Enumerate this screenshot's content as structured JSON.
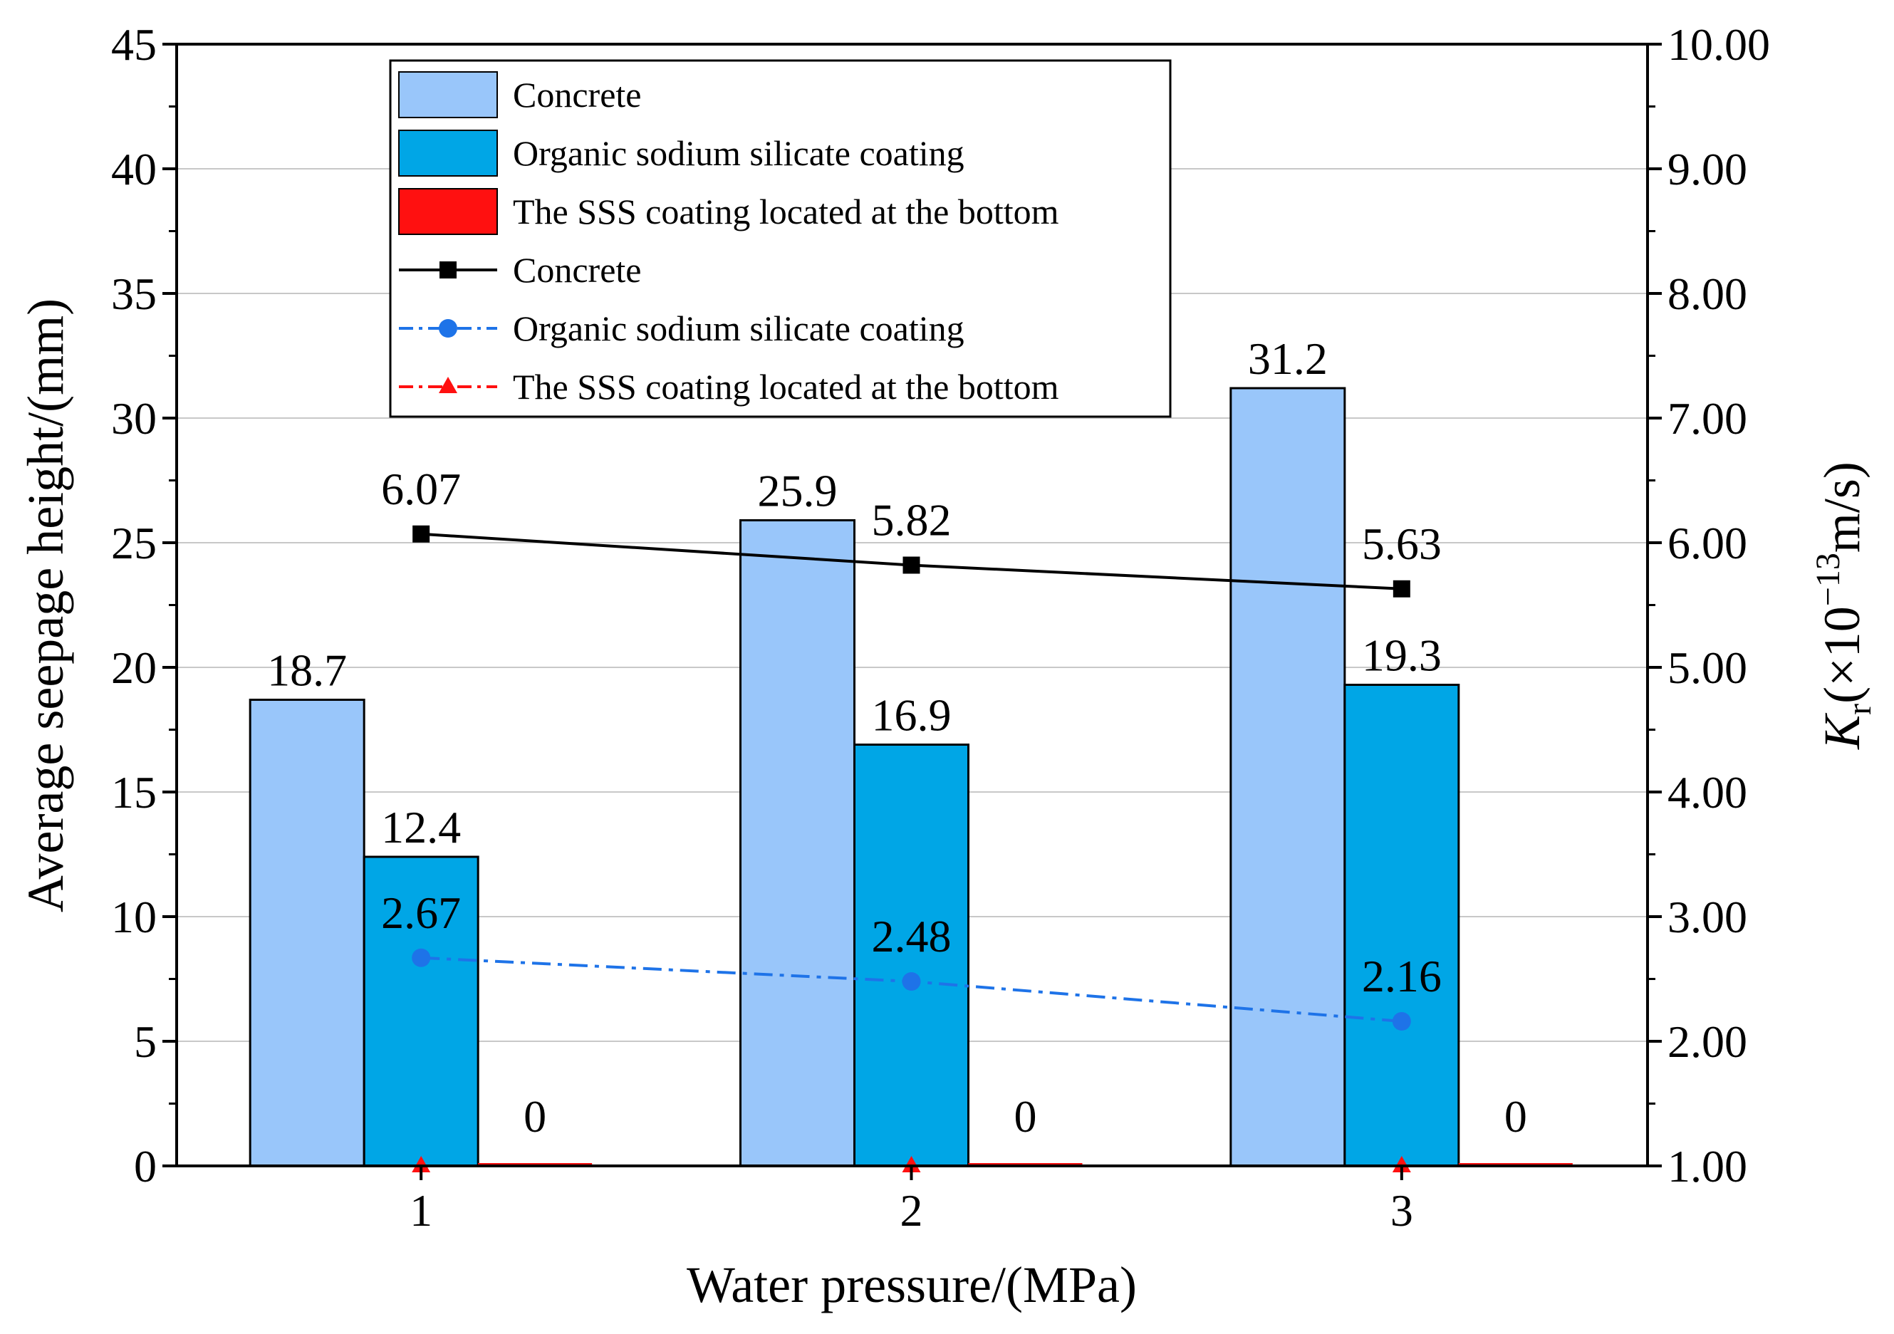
{
  "chart_data": {
    "type": "bar",
    "title": "",
    "xlabel": "Water pressure/(MPa)",
    "ylabel": "Average seepage height/(mm)",
    "y2label": {
      "base": "K",
      "sub": "r",
      "pre": "(×10",
      "sup": "−13",
      "post": "m/s)"
    },
    "categories": [
      "1",
      "2",
      "3"
    ],
    "ylim": [
      0,
      45
    ],
    "yticks": [
      0,
      5,
      10,
      15,
      20,
      25,
      30,
      35,
      40,
      45
    ],
    "y2lim": [
      1.0,
      10.0
    ],
    "y2ticks": [
      "1.00",
      "2.00",
      "3.00",
      "4.00",
      "5.00",
      "6.00",
      "7.00",
      "8.00",
      "9.00",
      "10.00"
    ],
    "grid": true,
    "legend_position": "top-left",
    "bar_series": [
      {
        "name": "Concrete",
        "color": "#99c6fa",
        "values": [
          18.7,
          25.9,
          31.2
        ],
        "labels": [
          "18.7",
          "25.9",
          "31.2"
        ]
      },
      {
        "name": "Organic sodium silicate coating",
        "color": "#00a6e6",
        "values": [
          12.4,
          16.9,
          19.3
        ],
        "labels": [
          "12.4",
          "16.9",
          "19.3"
        ]
      },
      {
        "name": "The SSS coating located at the bottom",
        "color": "#ff1010",
        "values": [
          0,
          0,
          0
        ],
        "labels": [
          "0",
          "0",
          "0"
        ]
      }
    ],
    "line_series": [
      {
        "name": "Concrete",
        "color": "#000000",
        "marker": "square",
        "dash": "solid",
        "values": [
          6.07,
          5.82,
          5.63
        ],
        "labels": [
          "6.07",
          "5.82",
          "5.63"
        ]
      },
      {
        "name": "Organic sodium silicate coating",
        "color": "#1e73e8",
        "marker": "circle",
        "dash": "dashdot",
        "values": [
          2.67,
          2.48,
          2.16
        ],
        "labels": [
          "2.67",
          "2.48",
          "2.16"
        ]
      },
      {
        "name": "The SSS coating located at the bottom",
        "color": "#ff1010",
        "marker": "triangle",
        "dash": "dashdot",
        "values": [
          1.0,
          1.0,
          1.0
        ],
        "labels": []
      }
    ]
  }
}
